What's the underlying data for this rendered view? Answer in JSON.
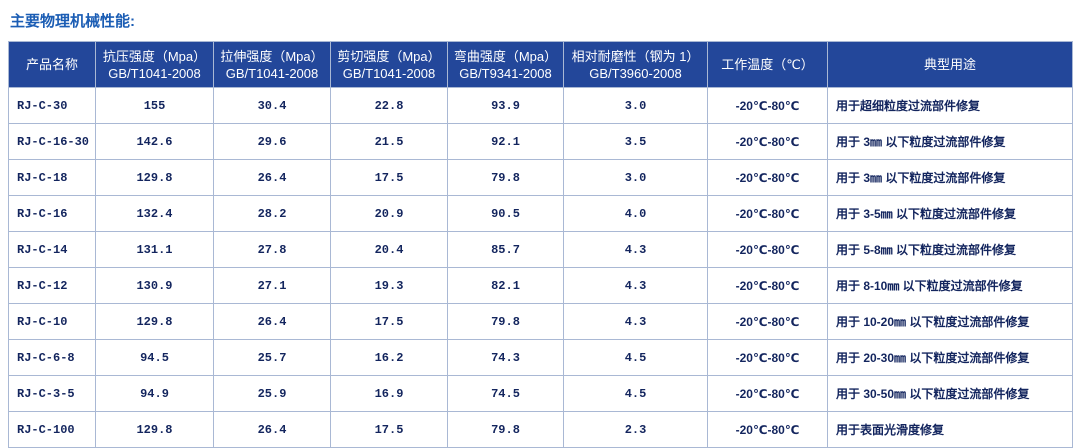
{
  "header": {
    "title": "主要物理机械性能:"
  },
  "table": {
    "header": [
      [
        "产品名称"
      ],
      [
        "抗压强度（Mpa）",
        "GB/T1041-2008"
      ],
      [
        "拉伸强度（Mpa）",
        "GB/T1041-2008"
      ],
      [
        "剪切强度（Mpa）",
        "GB/T1041-2008"
      ],
      [
        "弯曲强度（Mpa）",
        "GB/T9341-2008"
      ],
      [
        "相对耐磨性（钢为 1）",
        "GB/T3960-2008"
      ],
      [
        "工作温度（℃）"
      ],
      [
        "典型用途"
      ]
    ],
    "rows": [
      [
        "RJ-C-30",
        "155",
        "30.4",
        "22.8",
        "93.9",
        "3.0",
        "-20℃-80℃",
        "用于超细粒度过流部件修复"
      ],
      [
        "RJ-C-16-30",
        "142.6",
        "29.6",
        "21.5",
        "92.1",
        "3.5",
        "-20℃-80℃",
        "用于 3㎜ 以下粒度过流部件修复"
      ],
      [
        "RJ-C-18",
        "129.8",
        "26.4",
        "17.5",
        "79.8",
        "3.0",
        "-20℃-80℃",
        "用于 3㎜ 以下粒度过流部件修复"
      ],
      [
        "RJ-C-16",
        "132.4",
        "28.2",
        "20.9",
        "90.5",
        "4.0",
        "-20℃-80℃",
        "用于 3-5㎜ 以下粒度过流部件修复"
      ],
      [
        "RJ-C-14",
        "131.1",
        "27.8",
        "20.4",
        "85.7",
        "4.3",
        "-20℃-80℃",
        "用于 5-8㎜ 以下粒度过流部件修复"
      ],
      [
        "RJ-C-12",
        "130.9",
        "27.1",
        "19.3",
        "82.1",
        "4.3",
        "-20℃-80℃",
        "用于 8-10㎜ 以下粒度过流部件修复"
      ],
      [
        "RJ-C-10",
        "129.8",
        "26.4",
        "17.5",
        "79.8",
        "4.3",
        "-20℃-80℃",
        "用于 10-20㎜ 以下粒度过流部件修复"
      ],
      [
        "RJ-C-6-8",
        "94.5",
        "25.7",
        "16.2",
        "74.3",
        "4.5",
        "-20℃-80℃",
        "用于 20-30㎜ 以下粒度过流部件修复"
      ],
      [
        "RJ-C-3-5",
        "94.9",
        "25.9",
        "16.9",
        "74.5",
        "4.5",
        "-20℃-80℃",
        "用于 30-50㎜ 以下粒度过流部件修复"
      ],
      [
        "RJ-C-100",
        "129.8",
        "26.4",
        "17.5",
        "79.8",
        "2.3",
        "-20℃-80℃",
        "用于表面光滑度修复"
      ]
    ]
  }
}
